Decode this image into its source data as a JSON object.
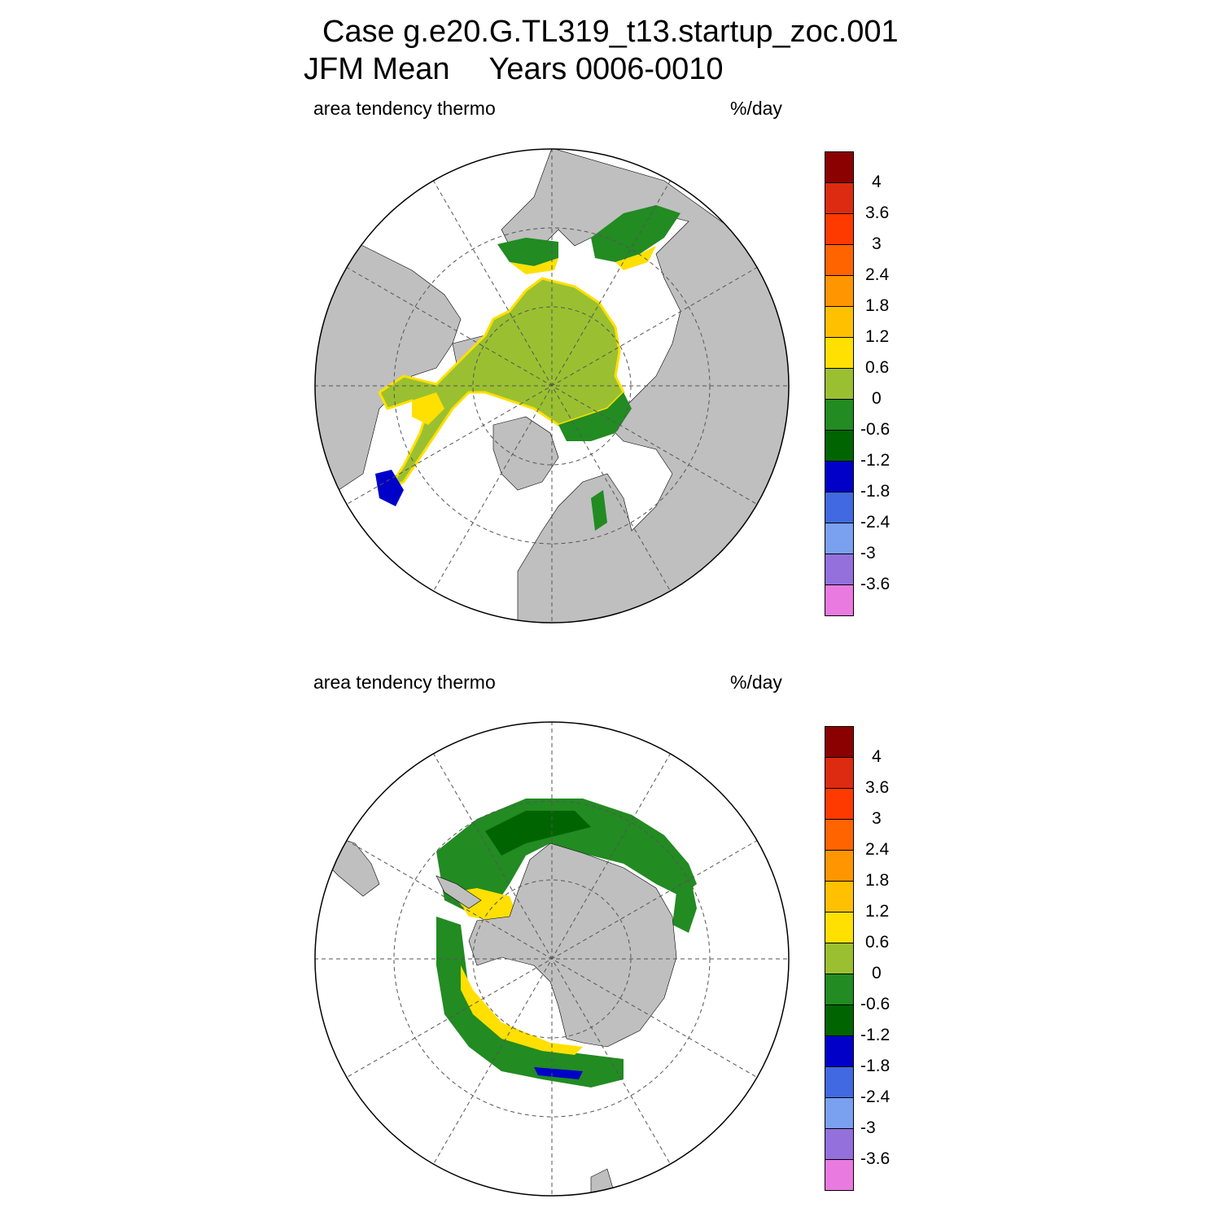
{
  "title": {
    "case_line": "Case g.e20.G.TL319_t13.startup_zoc.001",
    "mean": "JFM Mean",
    "years": "Years 0006-0010"
  },
  "panels": [
    {
      "id": "north",
      "left_label": "area tendency thermo",
      "unit": "%/day"
    },
    {
      "id": "south",
      "left_label": "area tendency thermo",
      "unit": "%/day"
    }
  ],
  "colorbar": {
    "tick_labels": [
      "4",
      "3.6",
      "3",
      "2.4",
      "1.8",
      "1.2",
      "0.6",
      "0",
      "-0.6",
      "-1.2",
      "-1.8",
      "-2.4",
      "-3",
      "-3.6"
    ],
    "colors_top_to_bottom": [
      "#8b0000",
      "#dc2b10",
      "#ff3a00",
      "#ff6400",
      "#ff9500",
      "#ffc000",
      "#ffe000",
      "#9ac031",
      "#228b22",
      "#006400",
      "#0000c8",
      "#4169e1",
      "#7aa0f0",
      "#9370db",
      "#e87ae0"
    ]
  },
  "colors": {
    "land": "#bfbfbf",
    "ocean": "#ffffff",
    "ice_zero": "#9ac031",
    "ice_neg": "#228b22",
    "ice_neg_dark": "#006400"
  }
}
